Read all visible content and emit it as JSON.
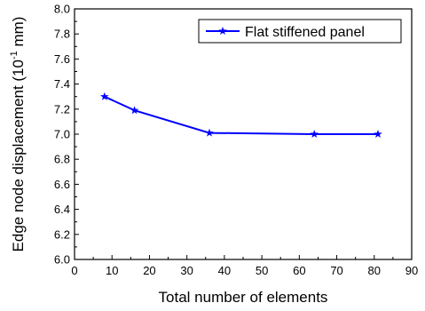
{
  "chart_data": {
    "type": "line",
    "xlabel": "Total number of elements",
    "ylabel_main": "Edge node displacement (10",
    "ylabel_sup": "-1",
    "ylabel_tail": " mm)",
    "xlim": [
      0,
      90
    ],
    "ylim": [
      6.0,
      8.0
    ],
    "xticks": [
      "0",
      "10",
      "20",
      "30",
      "40",
      "50",
      "60",
      "70",
      "80",
      "90"
    ],
    "yticks": [
      "6.0",
      "6.2",
      "6.4",
      "6.6",
      "6.8",
      "7.0",
      "7.2",
      "7.4",
      "7.6",
      "7.8",
      "8.0"
    ],
    "grid": false,
    "legend_position": "top-right",
    "series": [
      {
        "name": "Flat stiffened panel",
        "color": "#0000ff",
        "marker": "star",
        "x": [
          8,
          16,
          36,
          64,
          81
        ],
        "y": [
          7.3,
          7.19,
          7.01,
          7.0,
          7.0
        ]
      }
    ]
  }
}
